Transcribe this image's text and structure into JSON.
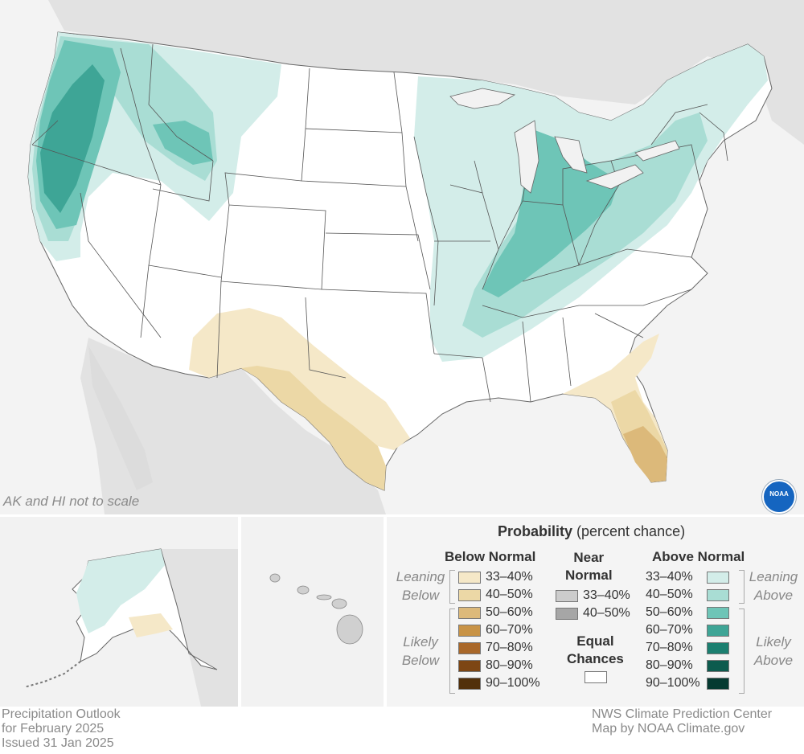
{
  "notes": {
    "scale_note": "AK and HI not to scale"
  },
  "legend": {
    "title_bold": "Probability",
    "title_rest": " (percent chance)",
    "below": {
      "heading": "Below Normal",
      "leaning_label": [
        "Leaning",
        "Below"
      ],
      "likely_label": [
        "Likely",
        "Below"
      ],
      "rows": [
        {
          "label": "33–40%",
          "color": "#f5e8c8"
        },
        {
          "label": "40–50%",
          "color": "#ecd8a6"
        },
        {
          "label": "50–60%",
          "color": "#dcb97a"
        },
        {
          "label": "60–70%",
          "color": "#c89346"
        },
        {
          "label": "70–80%",
          "color": "#a9682a"
        },
        {
          "label": "80–90%",
          "color": "#7d4614"
        },
        {
          "label": "90–100%",
          "color": "#52300b"
        }
      ]
    },
    "near": {
      "heading": [
        "Near",
        "Normal"
      ],
      "rows": [
        {
          "label": "33–40%",
          "color": "#cccccc"
        },
        {
          "label": "40–50%",
          "color": "#a6a6a6"
        }
      ],
      "equal_heading": [
        "Equal",
        "Chances"
      ],
      "equal_color": "#ffffff"
    },
    "above": {
      "heading": "Above Normal",
      "leaning_label": [
        "Leaning",
        "Above"
      ],
      "likely_label": [
        "Likely",
        "Above"
      ],
      "rows": [
        {
          "label": "33–40%",
          "color": "#d3ede9"
        },
        {
          "label": "40–50%",
          "color": "#a9ddd4"
        },
        {
          "label": "50–60%",
          "color": "#6ec5b7"
        },
        {
          "label": "60–70%",
          "color": "#3ea596"
        },
        {
          "label": "70–80%",
          "color": "#1b7f70"
        },
        {
          "label": "80–90%",
          "color": "#0d5b4e"
        },
        {
          "label": "90–100%",
          "color": "#053a31"
        }
      ]
    }
  },
  "footer": {
    "left": [
      "Precipitation Outlook",
      "for February 2025",
      "Issued 31 Jan 2025"
    ],
    "right": [
      "NWS Climate Prediction Center",
      "Map by NOAA Climate.gov"
    ]
  },
  "logo": {
    "text": "NOAA",
    "color": "#1565c0"
  },
  "colors": {
    "background_land": "#e4e4e4",
    "water": "#f2f2f2",
    "state_line": "#555555"
  }
}
